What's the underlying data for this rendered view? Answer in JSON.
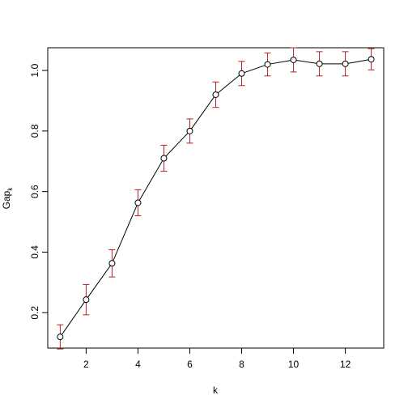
{
  "chart_data": {
    "type": "errorline",
    "xlabel": "k",
    "ylabel": "Gap",
    "ylabel_sub": "k",
    "x": [
      1,
      2,
      3,
      4,
      5,
      6,
      7,
      8,
      9,
      10,
      11,
      12,
      13
    ],
    "series": [
      {
        "color": "#000000",
        "error_color": "#b22222",
        "values": [
          0.12,
          0.243,
          0.363,
          0.563,
          0.71,
          0.8,
          0.92,
          0.99,
          1.02,
          1.035,
          1.022,
          1.022,
          1.037
        ],
        "errors": [
          0.04,
          0.05,
          0.045,
          0.043,
          0.043,
          0.04,
          0.042,
          0.04,
          0.038,
          0.04,
          0.04,
          0.04,
          0.035
        ]
      }
    ],
    "xlim": [
      0.52,
      13.48
    ],
    "ylim": [
      0.083,
      1.075
    ],
    "xticks": [
      2,
      4,
      6,
      8,
      10,
      12
    ],
    "yticks": [
      0.2,
      0.4,
      0.6,
      0.8,
      {
        "value": 1,
        "label": "1.0"
      }
    ]
  }
}
